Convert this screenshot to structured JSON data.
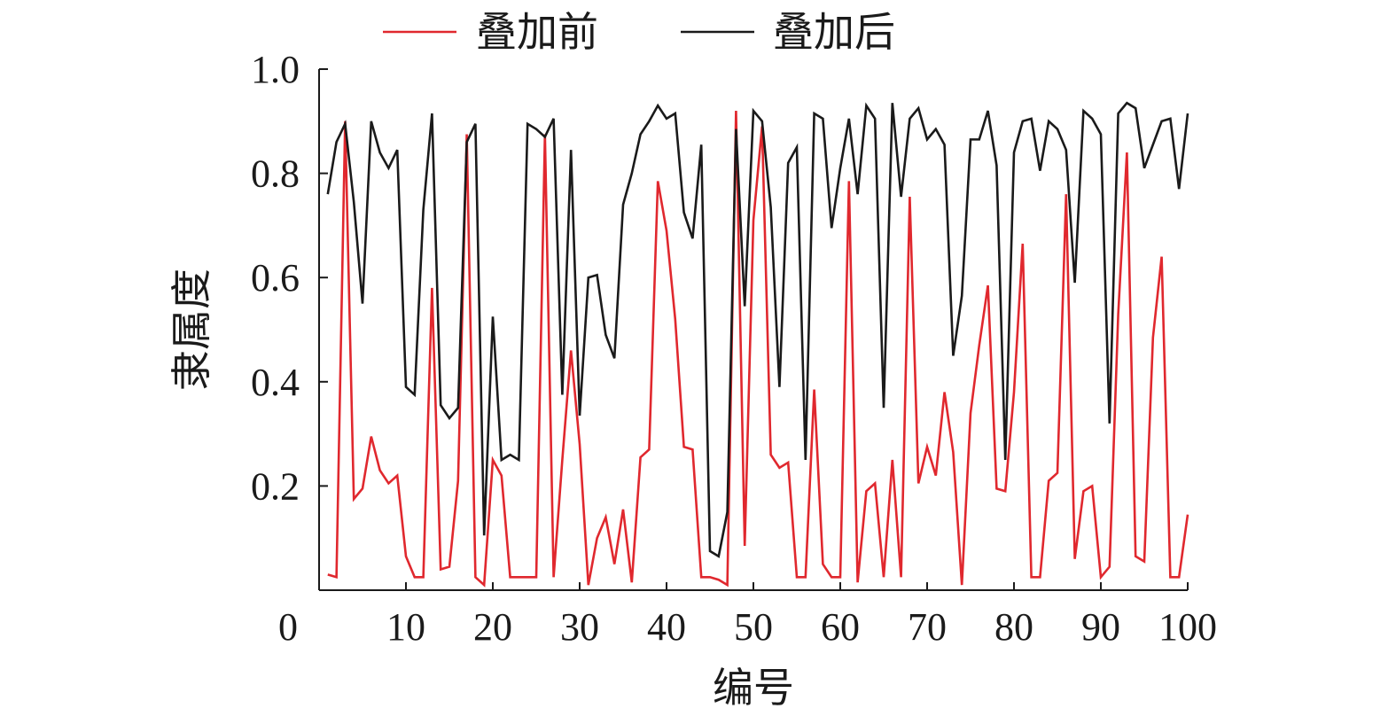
{
  "chart_data": {
    "type": "line",
    "title": "",
    "xlabel": "编号",
    "ylabel": "隶属度",
    "xlim": [
      0,
      100
    ],
    "ylim": [
      0,
      1.0
    ],
    "x_ticks": [
      0,
      10,
      20,
      30,
      40,
      50,
      60,
      70,
      80,
      90,
      100
    ],
    "y_ticks": [
      0.2,
      0.4,
      0.6,
      0.8,
      1.0
    ],
    "x_tick_labels": [
      "0",
      "10",
      "20",
      "30",
      "40",
      "50",
      "60",
      "70",
      "80",
      "90",
      "100"
    ],
    "y_tick_labels": [
      "0.2",
      "0.4",
      "0.6",
      "0.8",
      "1.0"
    ],
    "grid": false,
    "legend_position": "top",
    "x": [
      1,
      2,
      3,
      4,
      5,
      6,
      7,
      8,
      9,
      10,
      11,
      12,
      13,
      14,
      15,
      16,
      17,
      18,
      19,
      20,
      21,
      22,
      23,
      24,
      25,
      26,
      27,
      28,
      29,
      30,
      31,
      32,
      33,
      34,
      35,
      36,
      37,
      38,
      39,
      40,
      41,
      42,
      43,
      44,
      45,
      46,
      47,
      48,
      49,
      50,
      51,
      52,
      53,
      54,
      55,
      56,
      57,
      58,
      59,
      60,
      61,
      62,
      63,
      64,
      65,
      66,
      67,
      68,
      69,
      70,
      71,
      72,
      73,
      74,
      75,
      76,
      77,
      78,
      79,
      80,
      81,
      82,
      83,
      84,
      85,
      86,
      87,
      88,
      89,
      90,
      91,
      92,
      93,
      94,
      95,
      96,
      97,
      98,
      99,
      100
    ],
    "series": [
      {
        "name": "叠加前",
        "color": "#e0282e",
        "values": [
          0.03,
          0.025,
          0.9,
          0.175,
          0.195,
          0.295,
          0.23,
          0.205,
          0.22,
          0.065,
          0.025,
          0.025,
          0.58,
          0.04,
          0.045,
          0.21,
          0.875,
          0.025,
          0.01,
          0.25,
          0.22,
          0.025,
          0.025,
          0.025,
          0.025,
          0.875,
          0.025,
          0.25,
          0.46,
          0.28,
          0.01,
          0.1,
          0.14,
          0.05,
          0.155,
          0.015,
          0.255,
          0.27,
          0.785,
          0.69,
          0.52,
          0.275,
          0.27,
          0.025,
          0.025,
          0.02,
          0.01,
          0.92,
          0.085,
          0.71,
          0.89,
          0.26,
          0.235,
          0.245,
          0.025,
          0.025,
          0.385,
          0.05,
          0.025,
          0.025,
          0.785,
          0.015,
          0.19,
          0.205,
          0.025,
          0.25,
          0.025,
          0.755,
          0.205,
          0.275,
          0.22,
          0.38,
          0.265,
          0.01,
          0.34,
          0.47,
          0.585,
          0.195,
          0.19,
          0.38,
          0.665,
          0.025,
          0.025,
          0.21,
          0.225,
          0.76,
          0.06,
          0.19,
          0.2,
          0.025,
          0.045,
          0.53,
          0.84,
          0.065,
          0.055,
          0.485,
          0.64,
          0.025,
          0.025,
          0.145
        ]
      },
      {
        "name": "叠加后",
        "color": "#1a1a1a",
        "values": [
          0.76,
          0.86,
          0.895,
          0.745,
          0.55,
          0.9,
          0.84,
          0.81,
          0.845,
          0.39,
          0.375,
          0.73,
          0.915,
          0.355,
          0.33,
          0.35,
          0.86,
          0.895,
          0.105,
          0.525,
          0.25,
          0.26,
          0.25,
          0.895,
          0.885,
          0.87,
          0.905,
          0.375,
          0.845,
          0.335,
          0.6,
          0.605,
          0.49,
          0.445,
          0.74,
          0.8,
          0.875,
          0.9,
          0.93,
          0.905,
          0.915,
          0.725,
          0.675,
          0.855,
          0.075,
          0.065,
          0.15,
          0.885,
          0.545,
          0.92,
          0.9,
          0.735,
          0.39,
          0.82,
          0.85,
          0.25,
          0.915,
          0.905,
          0.695,
          0.81,
          0.905,
          0.76,
          0.93,
          0.905,
          0.35,
          0.935,
          0.755,
          0.905,
          0.925,
          0.865,
          0.885,
          0.855,
          0.45,
          0.565,
          0.865,
          0.865,
          0.92,
          0.815,
          0.25,
          0.84,
          0.9,
          0.905,
          0.805,
          0.9,
          0.885,
          0.845,
          0.59,
          0.92,
          0.905,
          0.875,
          0.32,
          0.915,
          0.935,
          0.925,
          0.81,
          0.855,
          0.9,
          0.905,
          0.77,
          0.915
        ]
      }
    ]
  }
}
